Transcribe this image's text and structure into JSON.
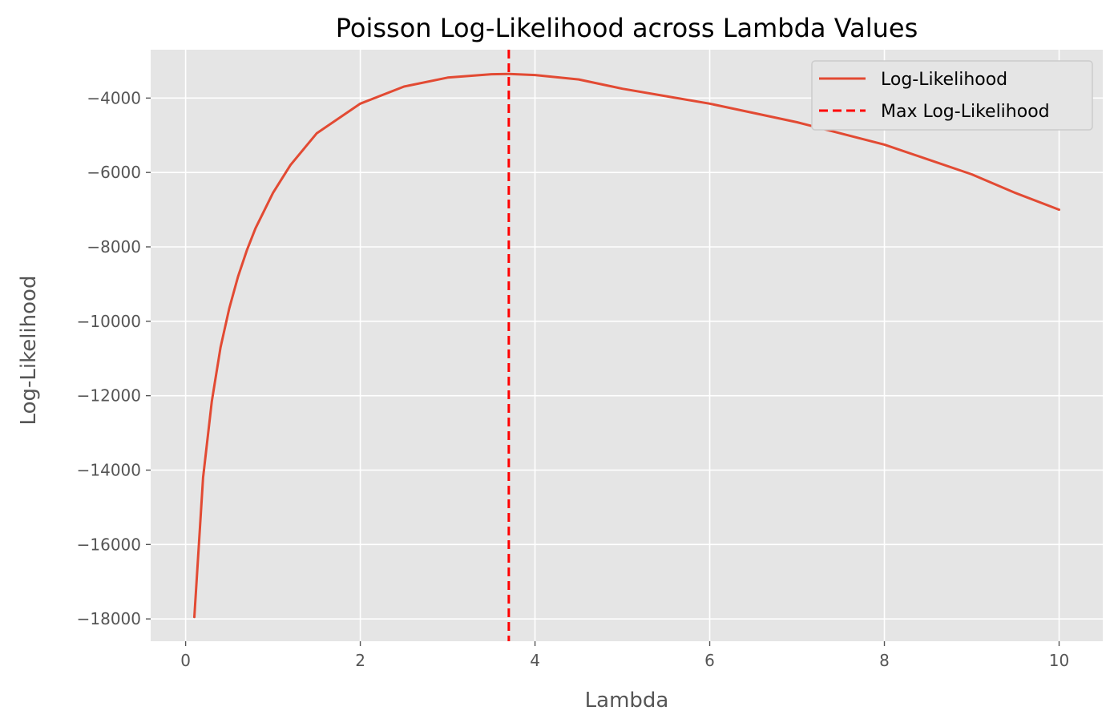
{
  "chart_data": {
    "type": "line",
    "title": "Poisson Log-Likelihood across Lambda Values",
    "xlabel": "Lambda",
    "ylabel": "Log-Likelihood",
    "xlim": [
      -0.4,
      10.5
    ],
    "ylim": [
      -18600,
      -2700
    ],
    "xticks": [
      0,
      2,
      4,
      6,
      8,
      10
    ],
    "yticks": [
      -18000,
      -16000,
      -14000,
      -12000,
      -10000,
      -8000,
      -6000,
      -4000
    ],
    "xtick_labels": [
      "0",
      "2",
      "4",
      "6",
      "8",
      "10"
    ],
    "ytick_labels": [
      "−18000",
      "−16000",
      "−14000",
      "−12000",
      "−10000",
      "−8000",
      "−6000",
      "−4000"
    ],
    "grid": true,
    "legend_position": "top-right",
    "series": [
      {
        "name": "Log-Likelihood",
        "color": "#E24A33",
        "style": "solid",
        "x": [
          0.1,
          0.2,
          0.3,
          0.4,
          0.5,
          0.6,
          0.7,
          0.8,
          1.0,
          1.2,
          1.5,
          2.0,
          2.5,
          3.0,
          3.5,
          3.7,
          4.0,
          4.5,
          5.0,
          5.5,
          6.0,
          6.5,
          7.0,
          7.5,
          8.0,
          8.5,
          9.0,
          9.5,
          10.0
        ],
        "y": [
          -17950,
          -14200,
          -12150,
          -10700,
          -9650,
          -8800,
          -8100,
          -7500,
          -6550,
          -5800,
          -4950,
          -4150,
          -3690,
          -3450,
          -3360,
          -3350,
          -3380,
          -3500,
          -3750,
          -3950,
          -4150,
          -4400,
          -4650,
          -4950,
          -5250,
          -5650,
          -6050,
          -6550,
          -7000
        ]
      }
    ],
    "reference_lines": [
      {
        "name": "Max Log-Likelihood",
        "orientation": "vertical",
        "x": 3.7,
        "color": "#FF0000",
        "style": "dashed"
      }
    ],
    "colors": {
      "plot_background": "#E5E5E5",
      "grid": "#FFFFFF",
      "line": "#E24A33",
      "max_line": "#FF0000"
    }
  }
}
